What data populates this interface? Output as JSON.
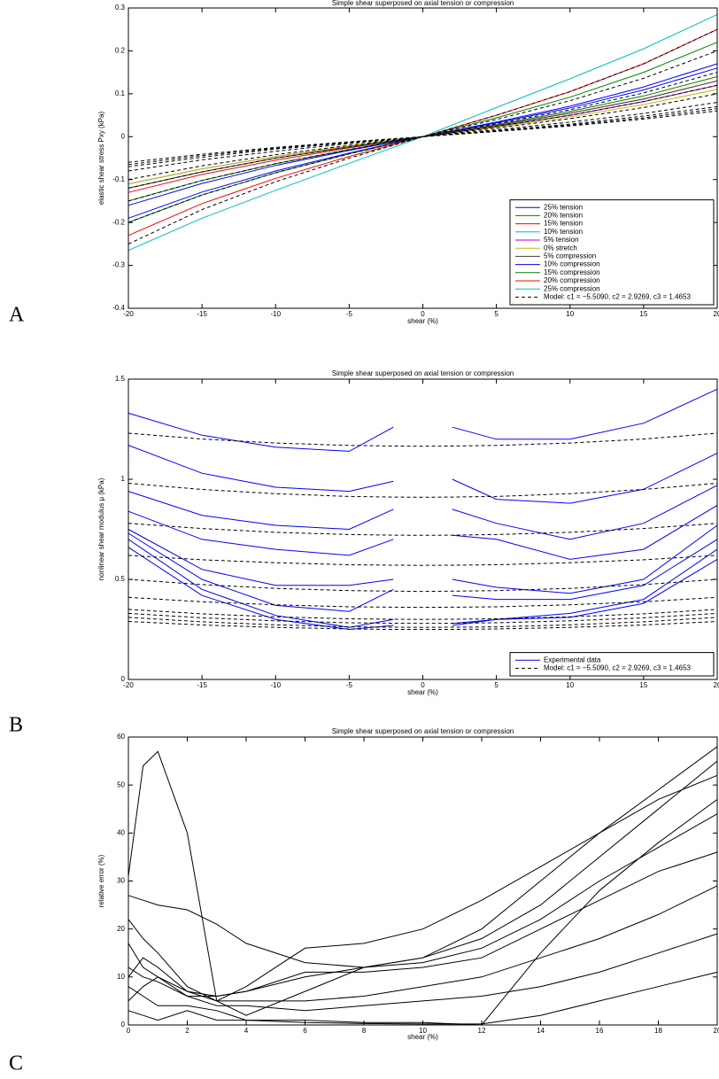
{
  "chart_data": [
    {
      "type": "line",
      "panel_label": "A",
      "title": "Simple shear superposed on axial tension or compression",
      "xlabel": "shear (%)",
      "ylabel": "elastic shear stress Pxy (kPa)",
      "x": [
        -20,
        -15,
        -10,
        -5,
        0,
        5,
        10,
        15,
        20
      ],
      "xlim": [
        -20,
        20
      ],
      "xticks": [
        -20,
        -15,
        -10,
        -5,
        0,
        5,
        10,
        15,
        20
      ],
      "ylim": [
        -0.4,
        0.3
      ],
      "yticks": [
        -0.4,
        -0.3,
        -0.2,
        -0.1,
        0,
        0.1,
        0.2,
        0.3
      ],
      "legend": "lower right",
      "series": [
        {
          "name": "25% tension",
          "color": "#0000ff",
          "dashed": false,
          "values": [
            -0.19,
            -0.129,
            -0.08,
            -0.038,
            0,
            0.032,
            0.067,
            0.109,
            0.16
          ]
        },
        {
          "name": "20% tension",
          "color": "#008000",
          "dashed": false,
          "values": [
            -0.15,
            -0.102,
            -0.063,
            -0.03,
            0,
            0.028,
            0.059,
            0.095,
            0.14
          ]
        },
        {
          "name": "15% tension",
          "color": "#ff0000",
          "dashed": false,
          "values": [
            -0.13,
            -0.088,
            -0.055,
            -0.026,
            0,
            0.026,
            0.055,
            0.088,
            0.13
          ]
        },
        {
          "name": "10% tension",
          "color": "#00bfbf",
          "dashed": false,
          "values": [
            -0.12,
            -0.082,
            -0.05,
            -0.024,
            0,
            0.024,
            0.05,
            0.082,
            0.12
          ]
        },
        {
          "name": "5% tension",
          "color": "#bf00bf",
          "dashed": false,
          "values": [
            -0.11,
            -0.075,
            -0.046,
            -0.022,
            0,
            0.024,
            0.05,
            0.082,
            0.12
          ]
        },
        {
          "name": "0% stretch",
          "color": "#bfbf00",
          "dashed": false,
          "values": [
            -0.11,
            -0.075,
            -0.046,
            -0.022,
            0,
            0.022,
            0.046,
            0.075,
            0.11
          ]
        },
        {
          "name": "5% compression",
          "color": "#404040",
          "dashed": false,
          "values": [
            -0.12,
            -0.082,
            -0.05,
            -0.024,
            0,
            0.026,
            0.055,
            0.088,
            0.13
          ]
        },
        {
          "name": "10% compression",
          "color": "#0000ff",
          "dashed": false,
          "values": [
            -0.16,
            -0.109,
            -0.067,
            -0.032,
            0,
            0.034,
            0.071,
            0.116,
            0.17
          ]
        },
        {
          "name": "15% compression",
          "color": "#008000",
          "dashed": false,
          "values": [
            -0.2,
            -0.136,
            -0.084,
            -0.04,
            0,
            0.044,
            0.092,
            0.15,
            0.22
          ]
        },
        {
          "name": "20% compression",
          "color": "#ff0000",
          "dashed": false,
          "values": [
            -0.23,
            -0.156,
            -0.097,
            -0.046,
            0,
            0.05,
            0.105,
            0.17,
            0.25
          ]
        },
        {
          "name": "25% compression",
          "color": "#00bfbf",
          "dashed": false,
          "values": [
            -0.265,
            -0.19,
            -0.125,
            -0.062,
            0,
            0.068,
            0.135,
            0.205,
            0.285
          ]
        },
        {
          "color": "#000000",
          "dashed": true,
          "values": [
            -0.06,
            -0.041,
            -0.025,
            -0.012,
            0,
            0.012,
            0.025,
            0.041,
            0.06
          ]
        },
        {
          "color": "#000000",
          "dashed": true,
          "values": [
            -0.065,
            -0.044,
            -0.027,
            -0.013,
            0,
            0.013,
            0.027,
            0.044,
            0.065
          ]
        },
        {
          "color": "#000000",
          "dashed": true,
          "values": [
            -0.07,
            -0.048,
            -0.029,
            -0.014,
            0,
            0.014,
            0.029,
            0.048,
            0.07
          ]
        },
        {
          "color": "#000000",
          "dashed": true,
          "values": [
            -0.08,
            -0.054,
            -0.034,
            -0.016,
            0,
            0.016,
            0.034,
            0.054,
            0.08
          ]
        },
        {
          "color": "#000000",
          "dashed": true,
          "values": [
            -0.1,
            -0.068,
            -0.042,
            -0.02,
            0,
            0.02,
            0.042,
            0.068,
            0.1
          ]
        },
        {
          "color": "#000000",
          "dashed": true,
          "values": [
            -0.12,
            -0.082,
            -0.05,
            -0.024,
            0,
            0.024,
            0.05,
            0.082,
            0.12
          ]
        },
        {
          "color": "#000000",
          "dashed": true,
          "values": [
            -0.15,
            -0.102,
            -0.063,
            -0.03,
            0,
            0.03,
            0.063,
            0.102,
            0.15
          ]
        },
        {
          "color": "#000000",
          "dashed": true,
          "values": [
            -0.2,
            -0.136,
            -0.084,
            -0.04,
            0,
            0.04,
            0.084,
            0.136,
            0.2
          ]
        },
        {
          "name": "Model: c1 = −5.5090, c2 = 2.9269, c3 = 1.4653",
          "color": "#000000",
          "dashed": true,
          "values": [
            -0.25,
            -0.17,
            -0.105,
            -0.05,
            0,
            0.05,
            0.105,
            0.17,
            0.25
          ]
        }
      ]
    },
    {
      "type": "line",
      "panel_label": "B",
      "title": "Simple shear superposed on axial tension or compression",
      "xlabel": "shear (%)",
      "ylabel": "nonlinear shear modulus μ (kPa)",
      "x": [
        -20,
        -15,
        -10,
        -5,
        -2,
        0,
        2,
        5,
        10,
        15,
        20
      ],
      "xlim": [
        -20,
        20
      ],
      "xticks": [
        -20,
        -15,
        -10,
        -5,
        0,
        5,
        10,
        15,
        20
      ],
      "ylim": [
        0,
        1.5
      ],
      "yticks": [
        0,
        0.5,
        1,
        1.5
      ],
      "legend": "lower right",
      "series": [
        {
          "name": "Experimental data",
          "color": "#0000ff",
          "dashed": false,
          "values": [
            1.33,
            1.22,
            1.16,
            1.14,
            1.26,
            null,
            1.26,
            1.2,
            1.2,
            1.28,
            1.45
          ]
        },
        {
          "color": "#0000ff",
          "dashed": false,
          "values": [
            1.17,
            1.03,
            0.96,
            0.94,
            0.99,
            null,
            1.0,
            0.9,
            0.88,
            0.95,
            1.13
          ]
        },
        {
          "color": "#0000ff",
          "dashed": false,
          "values": [
            0.94,
            0.82,
            0.77,
            0.75,
            0.85,
            null,
            0.85,
            0.78,
            0.7,
            0.78,
            0.97
          ]
        },
        {
          "color": "#0000ff",
          "dashed": false,
          "values": [
            0.84,
            0.7,
            0.65,
            0.62,
            0.7,
            null,
            0.72,
            0.7,
            0.6,
            0.65,
            0.87
          ]
        },
        {
          "color": "#0000ff",
          "dashed": false,
          "values": [
            0.75,
            0.55,
            0.47,
            0.47,
            0.5,
            null,
            0.5,
            0.46,
            0.43,
            0.5,
            0.77
          ]
        },
        {
          "color": "#0000ff",
          "dashed": false,
          "values": [
            0.73,
            0.5,
            0.37,
            0.34,
            0.45,
            null,
            0.42,
            0.4,
            0.4,
            0.47,
            0.7
          ]
        },
        {
          "color": "#0000ff",
          "dashed": false,
          "values": [
            0.7,
            0.45,
            0.32,
            0.26,
            0.3,
            null,
            0.28,
            0.3,
            0.33,
            0.4,
            0.65
          ]
        },
        {
          "color": "#0000ff",
          "dashed": false,
          "values": [
            0.66,
            0.42,
            0.3,
            0.25,
            0.27,
            null,
            0.27,
            0.3,
            0.31,
            0.38,
            0.6
          ]
        },
        {
          "color": "#000000",
          "dashed": true,
          "values": [
            1.23,
            1.201,
            1.181,
            1.169,
            1.166,
            1.165,
            1.166,
            1.169,
            1.181,
            1.201,
            1.23
          ]
        },
        {
          "color": "#000000",
          "dashed": true,
          "values": [
            0.98,
            0.949,
            0.928,
            0.914,
            0.911,
            0.91,
            0.911,
            0.914,
            0.928,
            0.949,
            0.98
          ]
        },
        {
          "color": "#000000",
          "dashed": true,
          "values": [
            0.78,
            0.754,
            0.735,
            0.724,
            0.721,
            0.72,
            0.721,
            0.724,
            0.735,
            0.754,
            0.78
          ]
        },
        {
          "color": "#000000",
          "dashed": true,
          "values": [
            0.62,
            0.598,
            0.583,
            0.573,
            0.571,
            0.57,
            0.571,
            0.573,
            0.583,
            0.598,
            0.62
          ]
        },
        {
          "color": "#000000",
          "dashed": true,
          "values": [
            0.5,
            0.474,
            0.455,
            0.444,
            0.441,
            0.44,
            0.441,
            0.444,
            0.455,
            0.474,
            0.5
          ]
        },
        {
          "color": "#000000",
          "dashed": true,
          "values": [
            0.41,
            0.388,
            0.373,
            0.363,
            0.361,
            0.36,
            0.361,
            0.363,
            0.373,
            0.388,
            0.41
          ]
        },
        {
          "color": "#000000",
          "dashed": true,
          "values": [
            0.35,
            0.328,
            0.313,
            0.303,
            0.301,
            0.3,
            0.301,
            0.303,
            0.313,
            0.328,
            0.35
          ]
        },
        {
          "color": "#000000",
          "dashed": true,
          "values": [
            0.33,
            0.308,
            0.293,
            0.283,
            0.281,
            0.28,
            0.281,
            0.283,
            0.293,
            0.308,
            0.33
          ]
        },
        {
          "color": "#000000",
          "dashed": true,
          "values": [
            0.31,
            0.288,
            0.273,
            0.263,
            0.261,
            0.26,
            0.261,
            0.263,
            0.273,
            0.288,
            0.31
          ]
        },
        {
          "name": "Model: c1 = −5.5090, c2 = 2.9269, c3 = 1.4653",
          "color": "#000000",
          "dashed": true,
          "values": [
            0.29,
            0.272,
            0.26,
            0.252,
            0.25,
            0.25,
            0.25,
            0.252,
            0.26,
            0.272,
            0.29
          ]
        }
      ]
    },
    {
      "type": "line",
      "panel_label": "C",
      "title": "Simple shear superposed on axial tension or compression",
      "xlabel": "shear (%)",
      "ylabel": "relative error (%)",
      "x": [
        0,
        0.5,
        1,
        2,
        3,
        4,
        6,
        8,
        10,
        12,
        14,
        16,
        18,
        20
      ],
      "xlim": [
        0,
        20
      ],
      "xticks": [
        0,
        2,
        4,
        6,
        8,
        10,
        12,
        14,
        16,
        18,
        20
      ],
      "ylim": [
        0,
        60
      ],
      "yticks": [
        0,
        10,
        20,
        30,
        40,
        50,
        60
      ],
      "series": [
        {
          "color": "#000000",
          "dashed": false,
          "values": [
            27,
            26,
            25,
            24,
            21,
            17,
            13,
            12,
            14,
            20,
            30,
            40,
            49,
            58
          ]
        },
        {
          "color": "#000000",
          "dashed": false,
          "values": [
            31,
            54,
            57,
            40,
            5,
            2,
            7,
            12,
            14,
            18,
            25,
            35,
            45,
            55
          ]
        },
        {
          "color": "#000000",
          "dashed": false,
          "values": [
            22,
            18,
            15,
            8,
            5,
            8,
            16,
            17,
            20,
            26,
            33,
            40,
            47,
            52
          ]
        },
        {
          "color": "#000000",
          "dashed": false,
          "values": [
            17,
            12,
            10,
            6,
            6,
            7,
            10,
            12,
            13,
            16,
            22,
            30,
            37,
            44
          ]
        },
        {
          "color": "#000000",
          "dashed": false,
          "values": [
            10,
            14,
            12,
            7,
            6,
            7,
            11,
            11,
            12,
            14,
            20,
            26,
            32,
            36
          ]
        },
        {
          "color": "#000000",
          "dashed": false,
          "values": [
            5,
            8,
            10,
            7,
            5,
            5,
            5,
            6,
            8,
            10,
            14,
            18,
            23,
            29
          ]
        },
        {
          "color": "#000000",
          "dashed": false,
          "values": [
            12,
            10,
            9,
            6,
            4,
            4,
            3,
            4,
            5,
            6,
            8,
            11,
            15,
            19
          ]
        },
        {
          "color": "#000000",
          "dashed": false,
          "values": [
            3,
            2,
            1,
            3,
            1,
            1,
            1,
            0.5,
            0.5,
            0,
            15,
            28,
            38,
            47
          ]
        },
        {
          "color": "#000000",
          "dashed": false,
          "values": [
            8,
            6,
            4,
            4,
            3,
            1,
            0.5,
            0.3,
            0.2,
            0.2,
            2,
            5,
            8,
            11
          ]
        }
      ]
    }
  ]
}
